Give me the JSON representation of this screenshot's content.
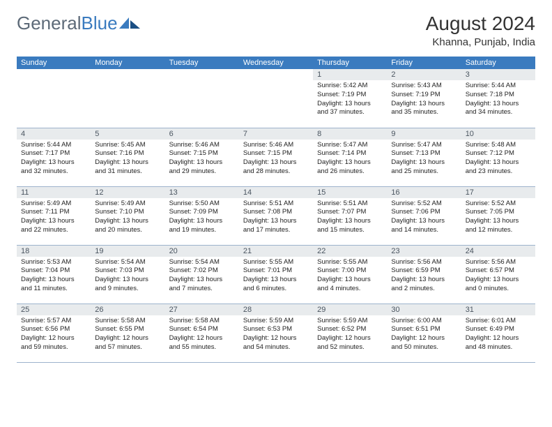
{
  "brand": {
    "part1": "General",
    "part2": "Blue"
  },
  "title": "August 2024",
  "location": "Khanna, Punjab, India",
  "colors": {
    "header_bg": "#3a7bbf",
    "header_text": "#ffffff",
    "daynum_bg": "#e8ebed",
    "daynum_text": "#4a5560",
    "cell_border": "#9db3cc",
    "logo_grey": "#5d6a78",
    "logo_blue": "#3a7bbf"
  },
  "weekdays": [
    "Sunday",
    "Monday",
    "Tuesday",
    "Wednesday",
    "Thursday",
    "Friday",
    "Saturday"
  ],
  "weeks": [
    [
      {
        "n": "",
        "sr": "",
        "ss": "",
        "d1": "",
        "d2": ""
      },
      {
        "n": "",
        "sr": "",
        "ss": "",
        "d1": "",
        "d2": ""
      },
      {
        "n": "",
        "sr": "",
        "ss": "",
        "d1": "",
        "d2": ""
      },
      {
        "n": "",
        "sr": "",
        "ss": "",
        "d1": "",
        "d2": ""
      },
      {
        "n": "1",
        "sr": "Sunrise: 5:42 AM",
        "ss": "Sunset: 7:19 PM",
        "d1": "Daylight: 13 hours",
        "d2": "and 37 minutes."
      },
      {
        "n": "2",
        "sr": "Sunrise: 5:43 AM",
        "ss": "Sunset: 7:19 PM",
        "d1": "Daylight: 13 hours",
        "d2": "and 35 minutes."
      },
      {
        "n": "3",
        "sr": "Sunrise: 5:44 AM",
        "ss": "Sunset: 7:18 PM",
        "d1": "Daylight: 13 hours",
        "d2": "and 34 minutes."
      }
    ],
    [
      {
        "n": "4",
        "sr": "Sunrise: 5:44 AM",
        "ss": "Sunset: 7:17 PM",
        "d1": "Daylight: 13 hours",
        "d2": "and 32 minutes."
      },
      {
        "n": "5",
        "sr": "Sunrise: 5:45 AM",
        "ss": "Sunset: 7:16 PM",
        "d1": "Daylight: 13 hours",
        "d2": "and 31 minutes."
      },
      {
        "n": "6",
        "sr": "Sunrise: 5:46 AM",
        "ss": "Sunset: 7:15 PM",
        "d1": "Daylight: 13 hours",
        "d2": "and 29 minutes."
      },
      {
        "n": "7",
        "sr": "Sunrise: 5:46 AM",
        "ss": "Sunset: 7:15 PM",
        "d1": "Daylight: 13 hours",
        "d2": "and 28 minutes."
      },
      {
        "n": "8",
        "sr": "Sunrise: 5:47 AM",
        "ss": "Sunset: 7:14 PM",
        "d1": "Daylight: 13 hours",
        "d2": "and 26 minutes."
      },
      {
        "n": "9",
        "sr": "Sunrise: 5:47 AM",
        "ss": "Sunset: 7:13 PM",
        "d1": "Daylight: 13 hours",
        "d2": "and 25 minutes."
      },
      {
        "n": "10",
        "sr": "Sunrise: 5:48 AM",
        "ss": "Sunset: 7:12 PM",
        "d1": "Daylight: 13 hours",
        "d2": "and 23 minutes."
      }
    ],
    [
      {
        "n": "11",
        "sr": "Sunrise: 5:49 AM",
        "ss": "Sunset: 7:11 PM",
        "d1": "Daylight: 13 hours",
        "d2": "and 22 minutes."
      },
      {
        "n": "12",
        "sr": "Sunrise: 5:49 AM",
        "ss": "Sunset: 7:10 PM",
        "d1": "Daylight: 13 hours",
        "d2": "and 20 minutes."
      },
      {
        "n": "13",
        "sr": "Sunrise: 5:50 AM",
        "ss": "Sunset: 7:09 PM",
        "d1": "Daylight: 13 hours",
        "d2": "and 19 minutes."
      },
      {
        "n": "14",
        "sr": "Sunrise: 5:51 AM",
        "ss": "Sunset: 7:08 PM",
        "d1": "Daylight: 13 hours",
        "d2": "and 17 minutes."
      },
      {
        "n": "15",
        "sr": "Sunrise: 5:51 AM",
        "ss": "Sunset: 7:07 PM",
        "d1": "Daylight: 13 hours",
        "d2": "and 15 minutes."
      },
      {
        "n": "16",
        "sr": "Sunrise: 5:52 AM",
        "ss": "Sunset: 7:06 PM",
        "d1": "Daylight: 13 hours",
        "d2": "and 14 minutes."
      },
      {
        "n": "17",
        "sr": "Sunrise: 5:52 AM",
        "ss": "Sunset: 7:05 PM",
        "d1": "Daylight: 13 hours",
        "d2": "and 12 minutes."
      }
    ],
    [
      {
        "n": "18",
        "sr": "Sunrise: 5:53 AM",
        "ss": "Sunset: 7:04 PM",
        "d1": "Daylight: 13 hours",
        "d2": "and 11 minutes."
      },
      {
        "n": "19",
        "sr": "Sunrise: 5:54 AM",
        "ss": "Sunset: 7:03 PM",
        "d1": "Daylight: 13 hours",
        "d2": "and 9 minutes."
      },
      {
        "n": "20",
        "sr": "Sunrise: 5:54 AM",
        "ss": "Sunset: 7:02 PM",
        "d1": "Daylight: 13 hours",
        "d2": "and 7 minutes."
      },
      {
        "n": "21",
        "sr": "Sunrise: 5:55 AM",
        "ss": "Sunset: 7:01 PM",
        "d1": "Daylight: 13 hours",
        "d2": "and 6 minutes."
      },
      {
        "n": "22",
        "sr": "Sunrise: 5:55 AM",
        "ss": "Sunset: 7:00 PM",
        "d1": "Daylight: 13 hours",
        "d2": "and 4 minutes."
      },
      {
        "n": "23",
        "sr": "Sunrise: 5:56 AM",
        "ss": "Sunset: 6:59 PM",
        "d1": "Daylight: 13 hours",
        "d2": "and 2 minutes."
      },
      {
        "n": "24",
        "sr": "Sunrise: 5:56 AM",
        "ss": "Sunset: 6:57 PM",
        "d1": "Daylight: 13 hours",
        "d2": "and 0 minutes."
      }
    ],
    [
      {
        "n": "25",
        "sr": "Sunrise: 5:57 AM",
        "ss": "Sunset: 6:56 PM",
        "d1": "Daylight: 12 hours",
        "d2": "and 59 minutes."
      },
      {
        "n": "26",
        "sr": "Sunrise: 5:58 AM",
        "ss": "Sunset: 6:55 PM",
        "d1": "Daylight: 12 hours",
        "d2": "and 57 minutes."
      },
      {
        "n": "27",
        "sr": "Sunrise: 5:58 AM",
        "ss": "Sunset: 6:54 PM",
        "d1": "Daylight: 12 hours",
        "d2": "and 55 minutes."
      },
      {
        "n": "28",
        "sr": "Sunrise: 5:59 AM",
        "ss": "Sunset: 6:53 PM",
        "d1": "Daylight: 12 hours",
        "d2": "and 54 minutes."
      },
      {
        "n": "29",
        "sr": "Sunrise: 5:59 AM",
        "ss": "Sunset: 6:52 PM",
        "d1": "Daylight: 12 hours",
        "d2": "and 52 minutes."
      },
      {
        "n": "30",
        "sr": "Sunrise: 6:00 AM",
        "ss": "Sunset: 6:51 PM",
        "d1": "Daylight: 12 hours",
        "d2": "and 50 minutes."
      },
      {
        "n": "31",
        "sr": "Sunrise: 6:01 AM",
        "ss": "Sunset: 6:49 PM",
        "d1": "Daylight: 12 hours",
        "d2": "and 48 minutes."
      }
    ]
  ]
}
